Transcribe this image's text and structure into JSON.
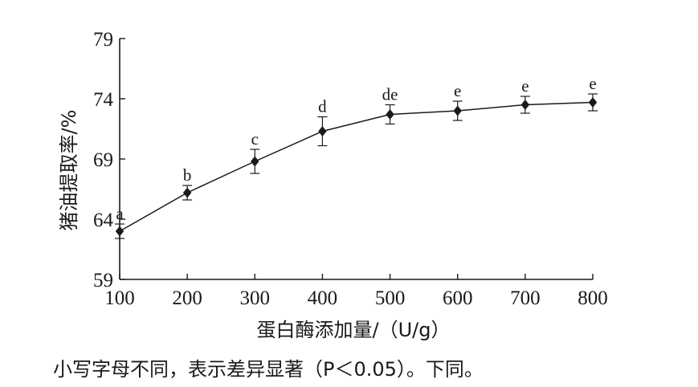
{
  "chart_data": {
    "type": "line",
    "x": [
      100,
      200,
      300,
      400,
      500,
      600,
      700,
      800
    ],
    "series": [
      {
        "values": [
          63.0,
          66.2,
          68.8,
          71.3,
          72.7,
          73.0,
          73.5,
          73.7
        ],
        "error": [
          0.6,
          0.6,
          1.0,
          1.2,
          0.8,
          0.8,
          0.7,
          0.7
        ],
        "labels": [
          "a",
          "b",
          "c",
          "d",
          "de",
          "e",
          "e",
          "e"
        ]
      }
    ],
    "xlabel": "蛋白酶添加量/（U/g）",
    "ylabel": "猪油提取率/%",
    "xlim": [
      100,
      800
    ],
    "ylim": [
      59,
      79
    ],
    "xticks": [
      100,
      200,
      300,
      400,
      500,
      600,
      700,
      800
    ],
    "yticks": [
      59,
      64,
      69,
      74,
      79
    ],
    "grid": false,
    "marker": "diamond",
    "color": "#1a1a1a"
  },
  "footnote": "小写字母不同，表示差异显著（P＜0.05）。下同。"
}
